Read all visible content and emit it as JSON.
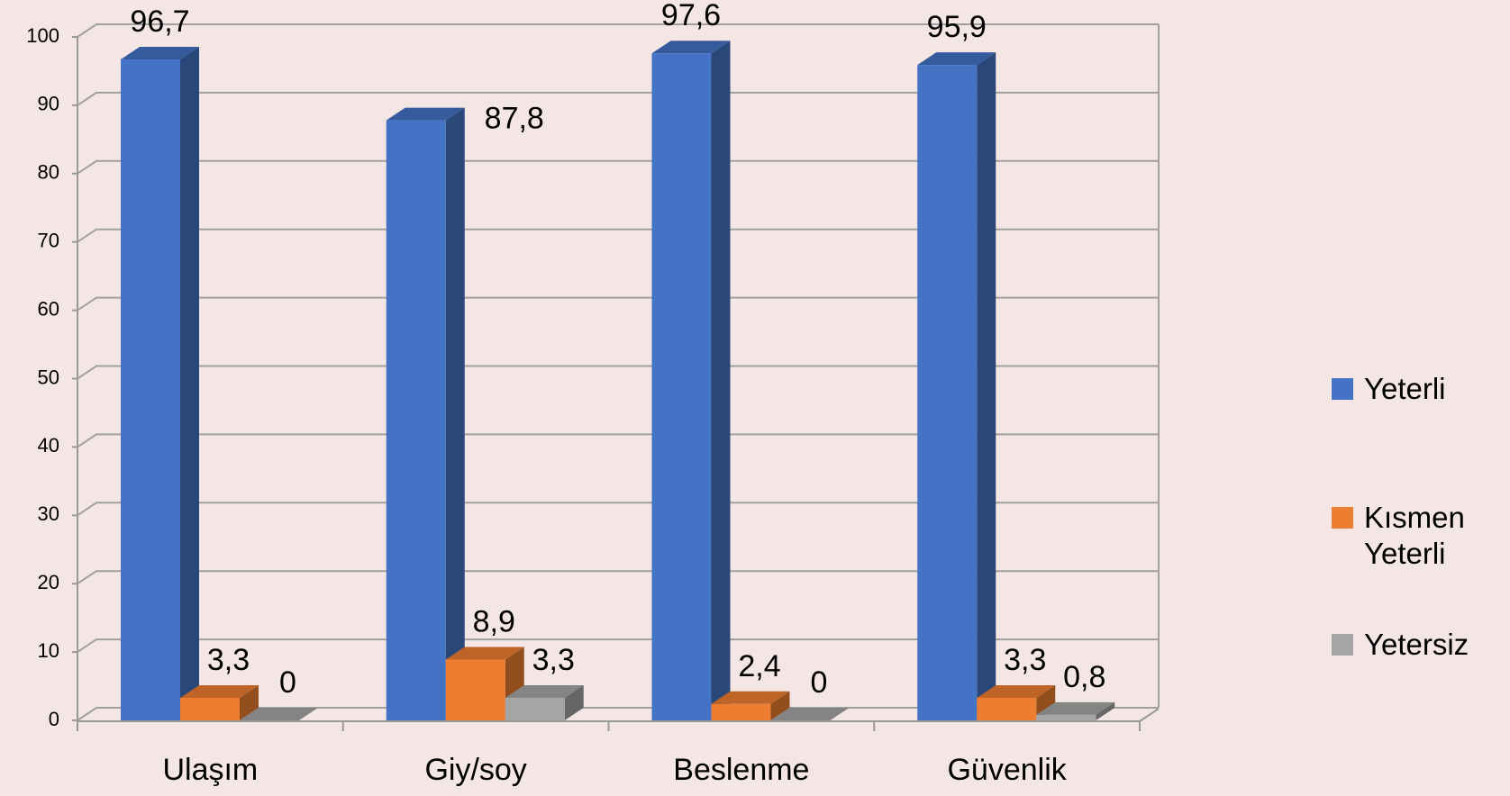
{
  "chart_data": {
    "type": "bar3d",
    "categories": [
      "Ulaşım",
      "Giy/soy",
      "Beslenme",
      "Güvenlik"
    ],
    "series": [
      {
        "name": "Yeterli",
        "color": "#4472c4",
        "values": [
          96.7,
          87.8,
          97.6,
          95.9
        ],
        "value_labels": [
          "96,7",
          "87,8",
          "97,6",
          "95,9"
        ]
      },
      {
        "name": "Kısmen Yeterli",
        "color": "#ed7d31",
        "values": [
          3.3,
          8.9,
          2.4,
          3.3
        ],
        "value_labels": [
          "3,3",
          "8,9",
          "2,4",
          "3,3"
        ]
      },
      {
        "name": "Yetersiz",
        "color": "#a5a5a5",
        "values": [
          0,
          3.3,
          0,
          0.8
        ],
        "value_labels": [
          "0",
          "3,3",
          "0",
          "0,8"
        ]
      }
    ],
    "ylim": [
      0,
      100
    ],
    "yticks": [
      0,
      10,
      20,
      30,
      40,
      50,
      60,
      70,
      80,
      90,
      100
    ],
    "grid": true,
    "legend": "right"
  }
}
